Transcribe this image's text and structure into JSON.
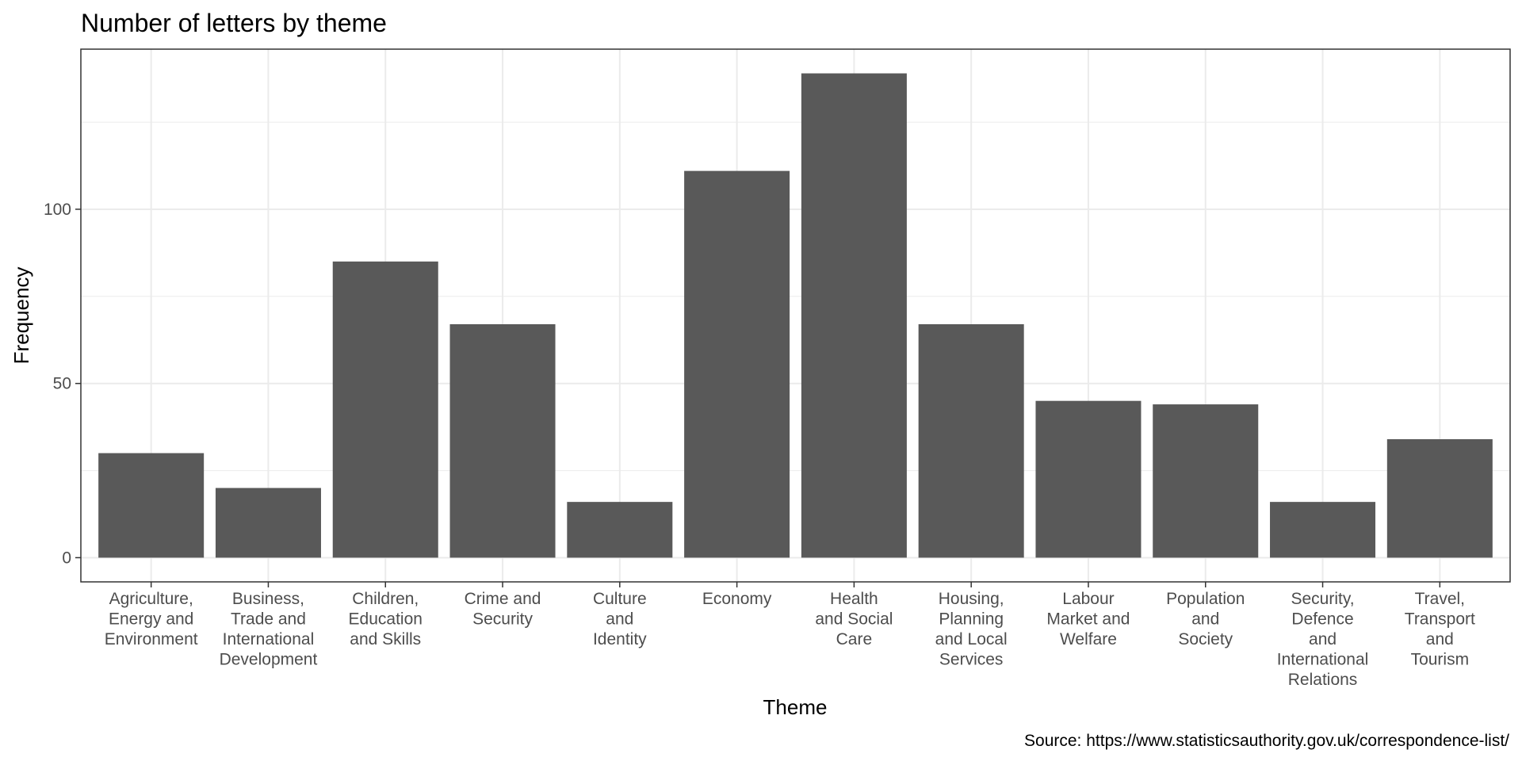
{
  "chart_data": {
    "type": "bar",
    "title": "Number of letters by theme",
    "xlabel": "Theme",
    "ylabel": "Frequency",
    "caption": "Source: https://www.statisticsauthority.gov.uk/correspondence-list/",
    "categories": [
      "Agriculture,\nEnergy and\nEnvironment",
      "Business,\nTrade and\nInternational\nDevelopment",
      "Children,\nEducation\nand Skills",
      "Crime and\nSecurity",
      "Culture\nand\nIdentity",
      "Economy",
      "Health\nand Social\nCare",
      "Housing,\nPlanning\nand Local\nServices",
      "Labour\nMarket and\nWelfare",
      "Population\nand\nSociety",
      "Security,\nDefence\nand\nInternational\nRelations",
      "Travel,\nTransport\nand\nTourism"
    ],
    "values": [
      30,
      20,
      85,
      67,
      16,
      111,
      139,
      67,
      45,
      44,
      16,
      34
    ],
    "ylim": [
      -6.95,
      145.95
    ],
    "yticks": [
      0,
      50,
      100
    ],
    "grid": true,
    "colors": {
      "bar": "#595959",
      "grid": "#ebebeb",
      "panel_border": "#333333",
      "tick_text": "#4d4d4d"
    }
  }
}
